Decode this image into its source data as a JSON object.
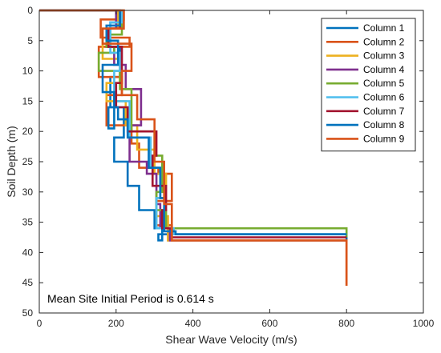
{
  "chart_data": {
    "type": "line",
    "xlabel": "Shear Wave Velocity (m/s)",
    "ylabel": "Soil Depth (m)",
    "xlim": [
      0,
      1000
    ],
    "ylim": [
      0,
      50
    ],
    "y_reversed": true,
    "grid": false,
    "legend_placement": "top-right",
    "x_ticks": [
      "0",
      "200",
      "400",
      "600",
      "800",
      "1000"
    ],
    "y_ticks": [
      "0",
      "5",
      "10",
      "15",
      "20",
      "25",
      "30",
      "35",
      "40",
      "45",
      "50"
    ],
    "annotation": "Mean Site Initial Period is 0.614 s",
    "series": [
      {
        "name": "Column 1",
        "color": "#0072BD",
        "x": [
          0,
          215,
          215,
          185,
          185,
          210,
          210,
          185,
          185,
          220,
          220,
          195,
          195,
          230,
          230,
          260,
          260,
          300,
          300,
          320,
          320,
          310,
          310,
          350,
          350,
          800,
          800
        ],
        "y": [
          0,
          0,
          2,
          2,
          6,
          6,
          11,
          11,
          16,
          16,
          21,
          21,
          25,
          25,
          29,
          29,
          33,
          33,
          36,
          36,
          38,
          38,
          37,
          37,
          37,
          37,
          38
        ]
      },
      {
        "name": "Column 2",
        "color": "#D95319",
        "x": [
          0,
          220,
          220,
          160,
          160,
          235,
          235,
          155,
          155,
          215,
          215,
          175,
          175,
          240,
          240,
          260,
          260,
          310,
          310,
          345,
          345,
          305,
          305,
          345,
          345,
          335,
          335,
          800,
          800
        ],
        "y": [
          0,
          0,
          1.5,
          1.5,
          4.5,
          4.5,
          6,
          6,
          11,
          11,
          14,
          14,
          19,
          19,
          22,
          22,
          26,
          26,
          27,
          27,
          31.5,
          31.5,
          35.5,
          35.5,
          36.5,
          36.5,
          38,
          38,
          45.5
        ]
      },
      {
        "name": "Column 3",
        "color": "#EDB120",
        "x": [
          0,
          205,
          205,
          165,
          165,
          210,
          210,
          175,
          175,
          225,
          225,
          255,
          255,
          300,
          300,
          330,
          330,
          305,
          305,
          335,
          335,
          800,
          800
        ],
        "y": [
          0,
          0,
          3,
          3,
          8,
          8,
          12,
          12,
          15,
          15,
          19,
          19,
          23,
          23,
          27,
          27,
          31,
          31,
          34,
          34,
          38,
          38,
          38
        ]
      },
      {
        "name": "Column 4",
        "color": "#7E2F8E",
        "x": [
          0,
          200,
          200,
          175,
          175,
          195,
          195,
          225,
          225,
          265,
          265,
          235,
          235,
          280,
          280,
          305,
          305,
          315,
          315,
          340,
          340,
          800,
          800
        ],
        "y": [
          0,
          0,
          3,
          3,
          6,
          6,
          9,
          9,
          13,
          13,
          19,
          19,
          25,
          25,
          27,
          27,
          32,
          32,
          36,
          36,
          38,
          38,
          38
        ]
      },
      {
        "name": "Column 5",
        "color": "#77AC30",
        "x": [
          0,
          215,
          215,
          175,
          175,
          195,
          195,
          155,
          155,
          210,
          210,
          240,
          240,
          300,
          300,
          320,
          320,
          305,
          305,
          330,
          330,
          800,
          800
        ],
        "y": [
          0,
          0,
          4,
          4,
          6,
          6,
          7,
          7,
          10,
          10,
          13,
          13,
          20,
          20,
          24,
          24,
          30,
          30,
          33,
          33,
          36,
          36,
          37.5
        ]
      },
      {
        "name": "Column 6",
        "color": "#4DBEEE",
        "x": [
          0,
          215,
          215,
          185,
          185,
          210,
          210,
          195,
          195,
          235,
          235,
          290,
          290,
          315,
          315,
          305,
          305,
          350,
          350,
          800,
          800
        ],
        "y": [
          0,
          0,
          2,
          2,
          7,
          7,
          10,
          10,
          15,
          15,
          21,
          21,
          26,
          26,
          31,
          31,
          36,
          36,
          37,
          37,
          37
        ]
      },
      {
        "name": "Column 7",
        "color": "#A2142F",
        "x": [
          0,
          210,
          210,
          180,
          180,
          215,
          215,
          200,
          200,
          230,
          230,
          305,
          305,
          295,
          295,
          330,
          330,
          320,
          320,
          345,
          345,
          800,
          800
        ],
        "y": [
          0,
          0,
          3,
          3,
          6,
          6,
          12,
          12,
          16,
          16,
          20,
          20,
          24,
          24,
          29,
          29,
          33,
          33,
          36,
          36,
          37.5,
          37.5,
          37.5
        ]
      },
      {
        "name": "Column 8",
        "color": "#0072BD",
        "x": [
          0,
          210,
          210,
          175,
          175,
          205,
          205,
          165,
          165,
          195,
          195,
          180,
          180,
          205,
          205,
          230,
          230,
          285,
          285,
          315,
          315,
          325,
          325,
          355,
          355,
          800,
          800
        ],
        "y": [
          0,
          0,
          2.5,
          2.5,
          5,
          5,
          9,
          9,
          13.5,
          13.5,
          19.5,
          19.5,
          16,
          16,
          18,
          18,
          21,
          21,
          26,
          26,
          31,
          31,
          36.5,
          36.5,
          37,
          37,
          37
        ]
      },
      {
        "name": "Column 9",
        "color": "#D95319",
        "x": [
          0,
          220,
          220,
          165,
          165,
          240,
          240,
          215,
          215,
          255,
          255,
          300,
          300,
          325,
          325,
          345,
          345,
          800,
          800
        ],
        "y": [
          0,
          0,
          3,
          3,
          5.5,
          5.5,
          10,
          10,
          14,
          14,
          18,
          18,
          25,
          25,
          32,
          32,
          38,
          38,
          45.5
        ]
      }
    ]
  }
}
